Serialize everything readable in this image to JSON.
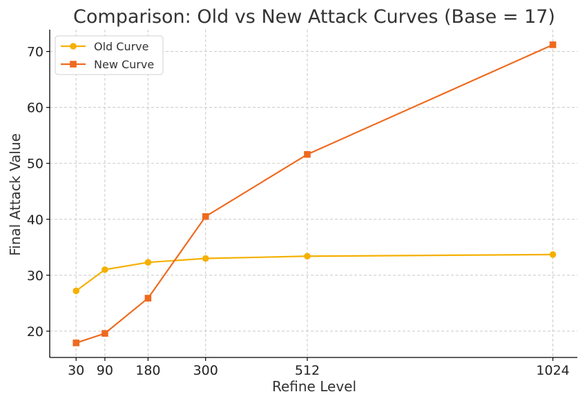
{
  "chart_data": {
    "type": "line",
    "title": "Comparison: Old vs New Attack Curves (Base = 17)",
    "xlabel": "Refine Level",
    "ylabel": "Final Attack Value",
    "x": [
      30,
      90,
      180,
      300,
      512,
      1024
    ],
    "xticks": [
      "30",
      "90",
      "180",
      "300",
      "512",
      "1024"
    ],
    "yticks": [
      "20",
      "30",
      "40",
      "50",
      "60",
      "70"
    ],
    "xlim": [
      -25,
      1075
    ],
    "ylim": [
      15.3,
      73.9
    ],
    "grid": true,
    "legend_position": "top-left",
    "series": [
      {
        "name": "Old Curve",
        "color": "#f5b000",
        "marker": "circle",
        "values": [
          27.2,
          31.0,
          32.3,
          33.0,
          33.4,
          33.7
        ]
      },
      {
        "name": "New Curve",
        "color": "#ee6a1f",
        "marker": "square",
        "values": [
          17.9,
          19.6,
          25.9,
          40.5,
          51.6,
          71.2
        ]
      }
    ]
  }
}
